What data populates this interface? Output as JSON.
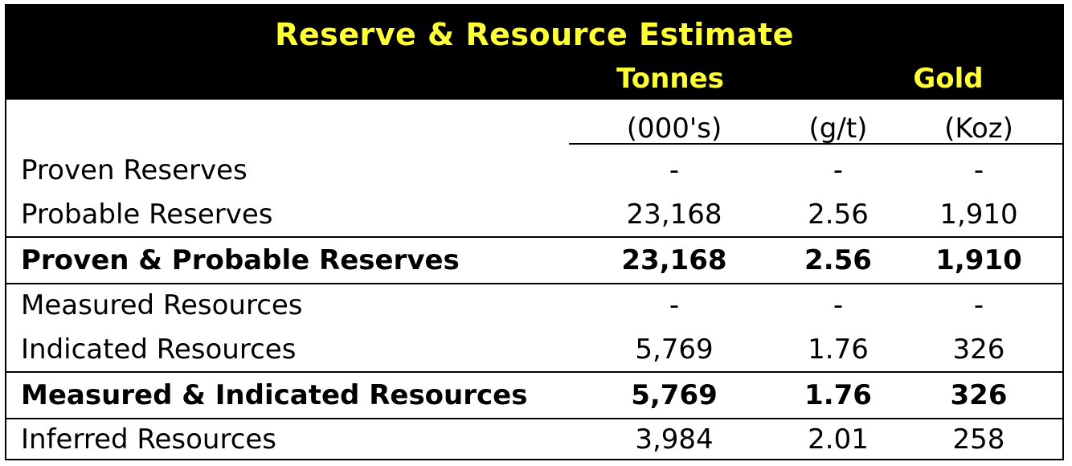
{
  "colors": {
    "header_bg": "#000000",
    "header_text": "#FFFF33",
    "body_text": "#000000"
  },
  "title": "Reserve & Resource Estimate",
  "column_headers": {
    "tonnes": "Tonnes",
    "gold": "Gold"
  },
  "units": [
    "(000's)",
    "(g/t)",
    "(Koz)"
  ],
  "rows": [
    {
      "label": "Proven Reserves",
      "tonnes": "-",
      "grade": "-",
      "koz": "-"
    },
    {
      "label": "Probable Reserves",
      "tonnes": "23,168",
      "grade": "2.56",
      "koz": "1,910"
    },
    {
      "label": "Proven & Probable Reserves",
      "tonnes": "23,168",
      "grade": "2.56",
      "koz": "1,910"
    },
    {
      "label": "Measured Resources",
      "tonnes": "-",
      "grade": "-",
      "koz": "-"
    },
    {
      "label": "Indicated Resources",
      "tonnes": "5,769",
      "grade": "1.76",
      "koz": "326"
    },
    {
      "label": "Measured & Indicated Resources",
      "tonnes": "5,769",
      "grade": "1.76",
      "koz": "326"
    },
    {
      "label": "Inferred Resources",
      "tonnes": "3,984",
      "grade": "2.01",
      "koz": "258"
    }
  ]
}
